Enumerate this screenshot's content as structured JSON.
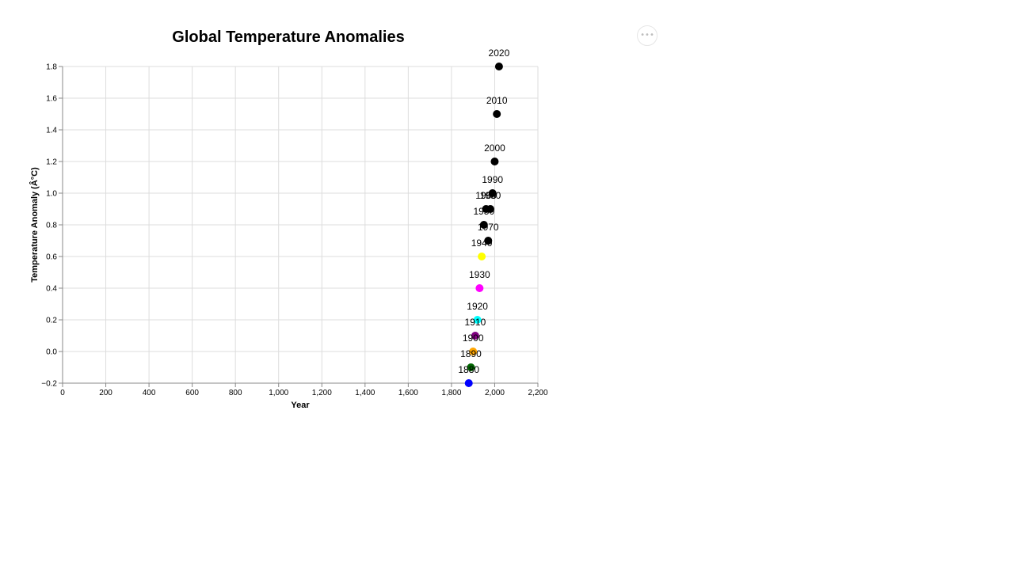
{
  "actions_menu": {
    "icon": "more-horizontal-icon",
    "glyph": "•••"
  },
  "chart_data": {
    "type": "scatter",
    "title": "Global Temperature Anomalies",
    "xlabel": "Year",
    "ylabel": "Temperature Anomaly (Â°C)",
    "xlim": [
      0,
      2200
    ],
    "ylim": [
      -0.2,
      1.8
    ],
    "x_ticks": [
      0,
      200,
      400,
      600,
      800,
      1000,
      1200,
      1400,
      1600,
      1800,
      2000,
      2200
    ],
    "x_tick_labels": [
      "0",
      "200",
      "400",
      "600",
      "800",
      "1,000",
      "1,200",
      "1,400",
      "1,600",
      "1,800",
      "2,000",
      "2,200"
    ],
    "y_ticks": [
      -0.2,
      0.0,
      0.2,
      0.4,
      0.6,
      0.8,
      1.0,
      1.2,
      1.4,
      1.6,
      1.8
    ],
    "y_tick_labels": [
      "−0.2",
      "0.0",
      "0.2",
      "0.4",
      "0.6",
      "0.8",
      "1.0",
      "1.2",
      "1.4",
      "1.6",
      "1.8"
    ],
    "grid": true,
    "points": [
      {
        "x": 1880,
        "y": -0.2,
        "label": "1880",
        "color": "#0000ff"
      },
      {
        "x": 1890,
        "y": -0.1,
        "label": "1890",
        "color": "#006400"
      },
      {
        "x": 1900,
        "y": 0.0,
        "label": "1900",
        "color": "#ffa500"
      },
      {
        "x": 1910,
        "y": 0.1,
        "label": "1910",
        "color": "#800080"
      },
      {
        "x": 1920,
        "y": 0.2,
        "label": "1920",
        "color": "#00ffff"
      },
      {
        "x": 1930,
        "y": 0.4,
        "label": "1930",
        "color": "#ff00ff"
      },
      {
        "x": 1940,
        "y": 0.6,
        "label": "1940",
        "color": "#ffff00"
      },
      {
        "x": 1950,
        "y": 0.8,
        "label": "1950",
        "color": "#000000"
      },
      {
        "x": 1960,
        "y": 0.9,
        "label": "1960",
        "color": "#000000"
      },
      {
        "x": 1970,
        "y": 0.7,
        "label": "1970",
        "color": "#000000"
      },
      {
        "x": 1980,
        "y": 0.9,
        "label": "1980",
        "color": "#000000"
      },
      {
        "x": 1990,
        "y": 1.0,
        "label": "1990",
        "color": "#000000"
      },
      {
        "x": 2000,
        "y": 1.2,
        "label": "2000",
        "color": "#000000"
      },
      {
        "x": 2010,
        "y": 1.5,
        "label": "2010",
        "color": "#000000"
      },
      {
        "x": 2020,
        "y": 1.8,
        "label": "2020",
        "color": "#000000"
      }
    ]
  }
}
